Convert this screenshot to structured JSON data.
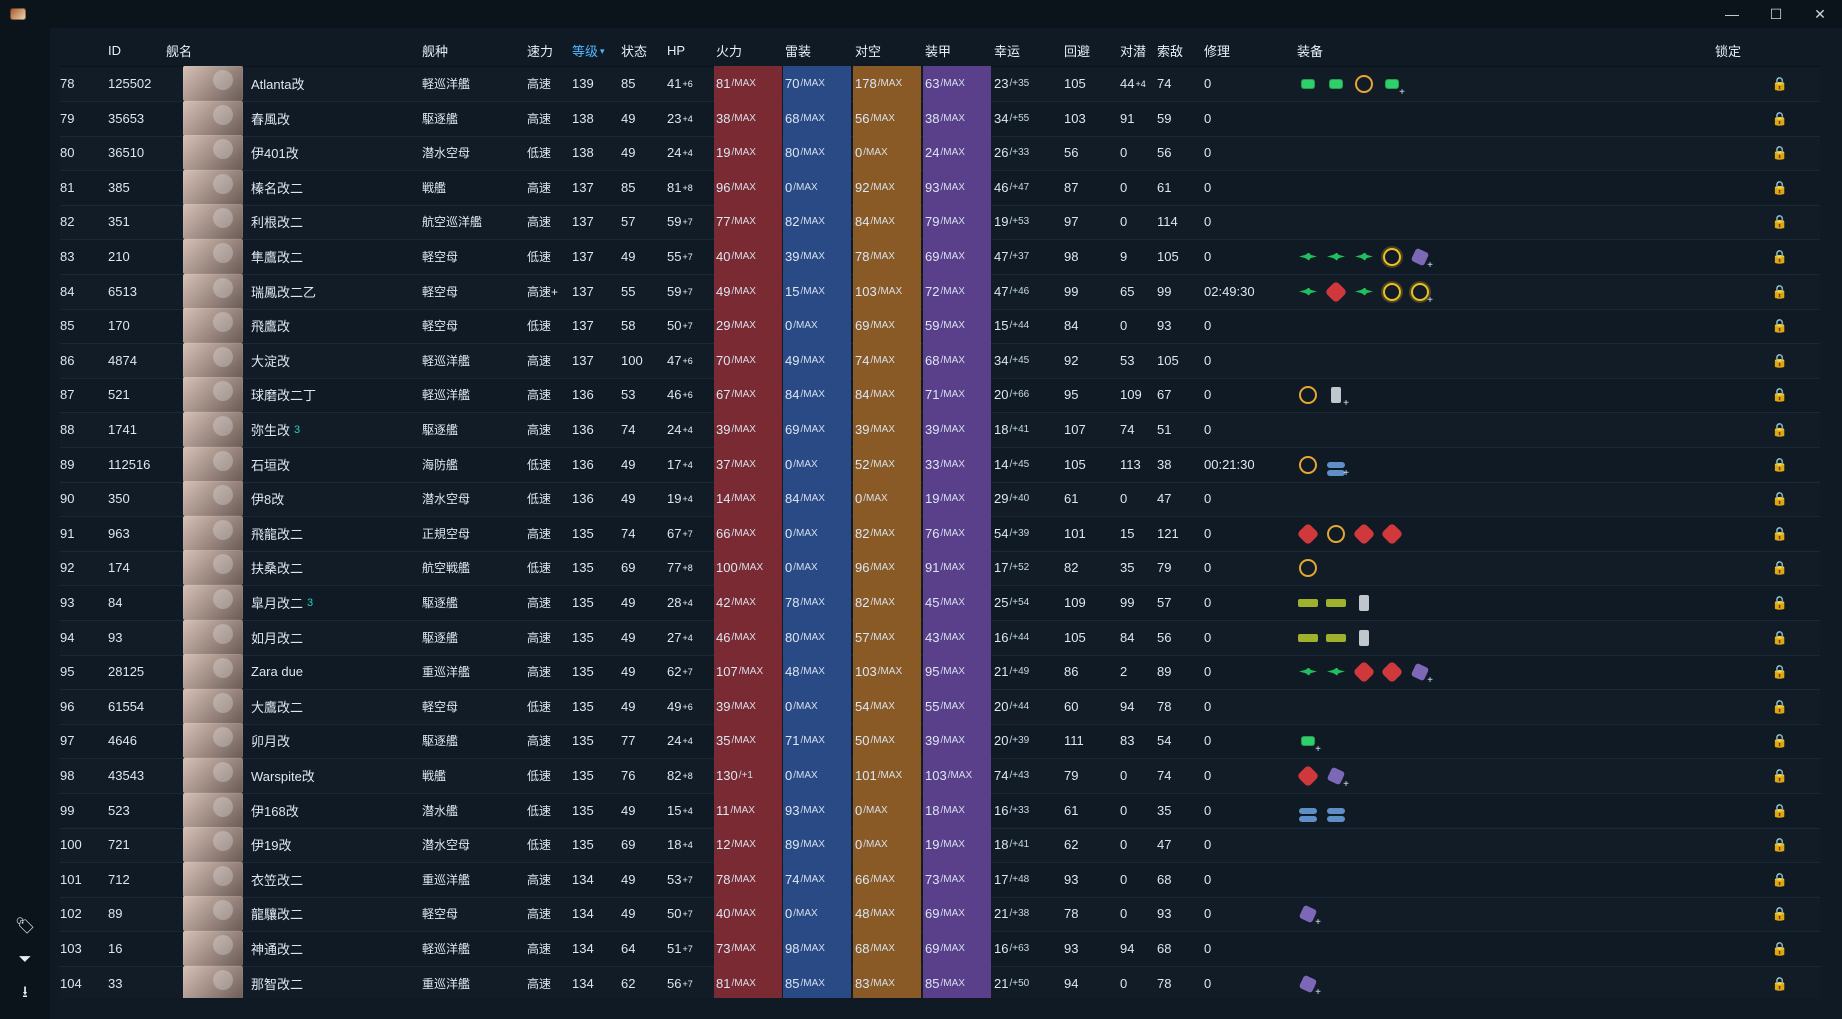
{
  "window": {
    "controls": {
      "minimize": "—",
      "maximize": "☐",
      "close": "✕"
    }
  },
  "sidebar": {
    "bottom_icons": [
      {
        "name": "tags-icon",
        "glyph": "🏷"
      },
      {
        "name": "filter-icon",
        "glyph": "⏷"
      },
      {
        "name": "download-icon",
        "glyph": "⭳"
      }
    ]
  },
  "table": {
    "headers": [
      {
        "key": "no",
        "label": ""
      },
      {
        "key": "id",
        "label": "ID"
      },
      {
        "key": "name",
        "label": "舰名"
      },
      {
        "key": "type",
        "label": "舰种"
      },
      {
        "key": "speed",
        "label": "速力"
      },
      {
        "key": "level",
        "label": "等级",
        "sorted": true,
        "caret": "▾"
      },
      {
        "key": "cond",
        "label": "状态"
      },
      {
        "key": "hp",
        "label": "HP"
      },
      {
        "key": "fire",
        "label": "火力"
      },
      {
        "key": "torp",
        "label": "雷装"
      },
      {
        "key": "aa",
        "label": "对空"
      },
      {
        "key": "armor",
        "label": "装甲"
      },
      {
        "key": "luck",
        "label": "幸运"
      },
      {
        "key": "evasion",
        "label": "回避"
      },
      {
        "key": "asw",
        "label": "对潜"
      },
      {
        "key": "los",
        "label": "索敌"
      },
      {
        "key": "repair",
        "label": "修理"
      },
      {
        "key": "equip",
        "label": "装备"
      },
      {
        "key": "lock",
        "label": "锁定"
      }
    ],
    "rows": [
      {
        "no": "78",
        "id": "125502",
        "name": "Atlanta改",
        "type": "軽巡洋艦",
        "speed": "高速",
        "level": "139",
        "cond": "85",
        "hp": "41",
        "hp_mod": "+6",
        "fire": "81",
        "torp": "70",
        "aa": "178",
        "armor": "63",
        "luck": "23",
        "luck_mod": "+35",
        "evasion": "105",
        "asw": "44",
        "asw_mod": "+4",
        "los": "74",
        "repair": "0",
        "equips": [
          "eq-dot",
          "eq-dot",
          "eq-radar",
          "eq-dot+"
        ]
      },
      {
        "no": "79",
        "id": "35653",
        "name": "春風改",
        "type": "駆逐艦",
        "speed": "高速",
        "level": "138",
        "cond": "49",
        "hp": "23",
        "hp_mod": "+4",
        "fire": "38",
        "torp": "68",
        "aa": "56",
        "armor": "38",
        "luck": "34",
        "luck_mod": "+55",
        "evasion": "103",
        "asw": "91",
        "asw_mod": "",
        "los": "59",
        "repair": "0",
        "equips": []
      },
      {
        "no": "80",
        "id": "36510",
        "name": "伊401改",
        "type": "潜水空母",
        "speed": "低速",
        "level": "138",
        "cond": "49",
        "hp": "24",
        "hp_mod": "+4",
        "fire": "19",
        "torp": "80",
        "aa": "0",
        "armor": "24",
        "luck": "26",
        "luck_mod": "+33",
        "evasion": "56",
        "asw": "0",
        "asw_mod": "",
        "los": "56",
        "repair": "0",
        "equips": []
      },
      {
        "no": "81",
        "id": "385",
        "name": "榛名改二",
        "type": "戦艦",
        "speed": "高速",
        "level": "137",
        "cond": "85",
        "hp": "81",
        "hp_mod": "+8",
        "fire": "96",
        "torp": "0",
        "aa": "92",
        "armor": "93",
        "luck": "46",
        "luck_mod": "+47",
        "evasion": "87",
        "asw": "0",
        "asw_mod": "",
        "los": "61",
        "repair": "0",
        "equips": []
      },
      {
        "no": "82",
        "id": "351",
        "name": "利根改二",
        "type": "航空巡洋艦",
        "speed": "高速",
        "level": "137",
        "cond": "57",
        "hp": "59",
        "hp_mod": "+7",
        "fire": "77",
        "torp": "82",
        "aa": "84",
        "armor": "79",
        "luck": "19",
        "luck_mod": "+53",
        "evasion": "97",
        "asw": "0",
        "asw_mod": "",
        "los": "114",
        "repair": "0",
        "equips": []
      },
      {
        "no": "83",
        "id": "210",
        "name": "隼鷹改二",
        "type": "軽空母",
        "speed": "低速",
        "level": "137",
        "cond": "49",
        "hp": "55",
        "hp_mod": "+7",
        "fire": "40",
        "torp": "39",
        "aa": "78",
        "armor": "69",
        "luck": "47",
        "luck_mod": "+37",
        "evasion": "98",
        "asw": "9",
        "asw_mod": "",
        "los": "105",
        "repair": "0",
        "equips": [
          "eq-plane",
          "eq-plane",
          "eq-plane",
          "eq-sun",
          "eq-purple+"
        ]
      },
      {
        "no": "84",
        "id": "6513",
        "name": "瑞鳳改二乙",
        "type": "軽空母",
        "speed": "高速+",
        "level": "137",
        "cond": "55",
        "hp": "59",
        "hp_mod": "+7",
        "fire": "49",
        "torp": "15",
        "aa": "103",
        "armor": "72",
        "luck": "47",
        "luck_mod": "+46",
        "evasion": "99",
        "asw": "65",
        "asw_mod": "",
        "los": "99",
        "repair": "02:49:30",
        "equips": [
          "eq-plane",
          "eq-red",
          "eq-plane",
          "eq-sun",
          "eq-sun+"
        ]
      },
      {
        "no": "85",
        "id": "170",
        "name": "飛鷹改",
        "type": "軽空母",
        "speed": "低速",
        "level": "137",
        "cond": "58",
        "hp": "50",
        "hp_mod": "+7",
        "fire": "29",
        "torp": "0",
        "aa": "69",
        "armor": "59",
        "luck": "15",
        "luck_mod": "+44",
        "evasion": "84",
        "asw": "0",
        "asw_mod": "",
        "los": "93",
        "repair": "0",
        "equips": []
      },
      {
        "no": "86",
        "id": "4874",
        "name": "大淀改",
        "type": "軽巡洋艦",
        "speed": "高速",
        "level": "137",
        "cond": "100",
        "hp": "47",
        "hp_mod": "+6",
        "fire": "70",
        "torp": "49",
        "aa": "74",
        "armor": "68",
        "luck": "34",
        "luck_mod": "+45",
        "evasion": "92",
        "asw": "53",
        "asw_mod": "",
        "los": "105",
        "repair": "0",
        "equips": []
      },
      {
        "no": "87",
        "id": "521",
        "name": "球磨改二丁",
        "type": "軽巡洋艦",
        "speed": "高速",
        "level": "136",
        "cond": "53",
        "hp": "46",
        "hp_mod": "+6",
        "fire": "67",
        "torp": "84",
        "aa": "84",
        "armor": "71",
        "luck": "20",
        "luck_mod": "+66",
        "evasion": "95",
        "asw": "109",
        "asw_mod": "",
        "los": "67",
        "repair": "0",
        "equips": [
          "eq-radar",
          "eq-gray+"
        ]
      },
      {
        "no": "88",
        "id": "1741",
        "name": "弥生改",
        "name_badge": "3",
        "type": "駆逐艦",
        "speed": "高速",
        "level": "136",
        "cond": "74",
        "hp": "24",
        "hp_mod": "+4",
        "fire": "39",
        "torp": "69",
        "aa": "39",
        "armor": "39",
        "luck": "18",
        "luck_mod": "+41",
        "evasion": "107",
        "asw": "74",
        "asw_mod": "",
        "los": "51",
        "repair": "0",
        "equips": []
      },
      {
        "no": "89",
        "id": "112516",
        "name": "石垣改",
        "type": "海防艦",
        "speed": "低速",
        "level": "136",
        "cond": "49",
        "hp": "17",
        "hp_mod": "+4",
        "fire": "37",
        "torp": "0",
        "aa": "52",
        "armor": "33",
        "luck": "14",
        "luck_mod": "+45",
        "evasion": "105",
        "asw": "113",
        "asw_mod": "",
        "los": "38",
        "repair": "00:21:30",
        "equips": [
          "eq-radar",
          "eq-blue+"
        ]
      },
      {
        "no": "90",
        "id": "350",
        "name": "伊8改",
        "type": "潜水空母",
        "speed": "低速",
        "level": "136",
        "cond": "49",
        "hp": "19",
        "hp_mod": "+4",
        "fire": "14",
        "torp": "84",
        "aa": "0",
        "armor": "19",
        "luck": "29",
        "luck_mod": "+40",
        "evasion": "61",
        "asw": "0",
        "asw_mod": "",
        "los": "47",
        "repair": "0",
        "equips": []
      },
      {
        "no": "91",
        "id": "963",
        "name": "飛龍改二",
        "type": "正規空母",
        "speed": "高速",
        "level": "135",
        "cond": "74",
        "hp": "67",
        "hp_mod": "+7",
        "fire": "66",
        "torp": "0",
        "aa": "82",
        "armor": "76",
        "luck": "54",
        "luck_mod": "+39",
        "evasion": "101",
        "asw": "15",
        "asw_mod": "",
        "los": "121",
        "repair": "0",
        "equips": [
          "eq-red",
          "eq-radar",
          "eq-red",
          "eq-red"
        ]
      },
      {
        "no": "92",
        "id": "174",
        "name": "扶桑改二",
        "type": "航空戦艦",
        "speed": "低速",
        "level": "135",
        "cond": "69",
        "hp": "77",
        "hp_mod": "+8",
        "fire": "100",
        "torp": "0",
        "aa": "96",
        "armor": "91",
        "luck": "17",
        "luck_mod": "+52",
        "evasion": "82",
        "asw": "35",
        "asw_mod": "",
        "los": "79",
        "repair": "0",
        "equips": [
          "eq-radar"
        ]
      },
      {
        "no": "93",
        "id": "84",
        "name": "皐月改二",
        "name_badge": "3",
        "type": "駆逐艦",
        "speed": "高速",
        "level": "135",
        "cond": "49",
        "hp": "28",
        "hp_mod": "+4",
        "fire": "42",
        "torp": "78",
        "aa": "82",
        "armor": "45",
        "luck": "25",
        "luck_mod": "+54",
        "evasion": "109",
        "asw": "99",
        "asw_mod": "",
        "los": "57",
        "repair": "0",
        "equips": [
          "eq-ship",
          "eq-ship",
          "eq-gray"
        ]
      },
      {
        "no": "94",
        "id": "93",
        "name": "如月改二",
        "type": "駆逐艦",
        "speed": "高速",
        "level": "135",
        "cond": "49",
        "hp": "27",
        "hp_mod": "+4",
        "fire": "46",
        "torp": "80",
        "aa": "57",
        "armor": "43",
        "luck": "16",
        "luck_mod": "+44",
        "evasion": "105",
        "asw": "84",
        "asw_mod": "",
        "los": "56",
        "repair": "0",
        "equips": [
          "eq-ship",
          "eq-ship",
          "eq-gray"
        ]
      },
      {
        "no": "95",
        "id": "28125",
        "name": "Zara due",
        "type": "重巡洋艦",
        "speed": "高速",
        "level": "135",
        "cond": "49",
        "hp": "62",
        "hp_mod": "+7",
        "fire": "107",
        "torp": "48",
        "aa": "103",
        "armor": "95",
        "luck": "21",
        "luck_mod": "+49",
        "evasion": "86",
        "asw": "2",
        "asw_mod": "",
        "los": "89",
        "repair": "0",
        "equips": [
          "eq-plane",
          "eq-plane",
          "eq-red",
          "eq-red",
          "eq-purple+"
        ]
      },
      {
        "no": "96",
        "id": "61554",
        "name": "大鷹改二",
        "type": "軽空母",
        "speed": "低速",
        "level": "135",
        "cond": "49",
        "hp": "49",
        "hp_mod": "+6",
        "fire": "39",
        "torp": "0",
        "aa": "54",
        "armor": "55",
        "luck": "20",
        "luck_mod": "+44",
        "evasion": "60",
        "asw": "94",
        "asw_mod": "",
        "los": "78",
        "repair": "0",
        "equips": []
      },
      {
        "no": "97",
        "id": "4646",
        "name": "卯月改",
        "type": "駆逐艦",
        "speed": "高速",
        "level": "135",
        "cond": "77",
        "hp": "24",
        "hp_mod": "+4",
        "fire": "35",
        "torp": "71",
        "aa": "50",
        "armor": "39",
        "luck": "20",
        "luck_mod": "+39",
        "evasion": "111",
        "asw": "83",
        "asw_mod": "",
        "los": "54",
        "repair": "0",
        "equips": [
          "eq-dot+"
        ]
      },
      {
        "no": "98",
        "id": "43543",
        "name": "Warspite改",
        "type": "戦艦",
        "speed": "低速",
        "level": "135",
        "cond": "76",
        "hp": "82",
        "hp_mod": "+8",
        "fire": "130",
        "fire_plain": true,
        "fire_mod": "+1",
        "torp": "0",
        "aa": "101",
        "armor": "103",
        "luck": "74",
        "luck_mod": "+43",
        "evasion": "79",
        "asw": "0",
        "asw_mod": "",
        "los": "74",
        "repair": "0",
        "equips": [
          "eq-red",
          "eq-purple+"
        ]
      },
      {
        "no": "99",
        "id": "523",
        "name": "伊168改",
        "type": "潜水艦",
        "speed": "低速",
        "level": "135",
        "cond": "49",
        "hp": "15",
        "hp_mod": "+4",
        "fire": "11",
        "torp": "93",
        "aa": "0",
        "armor": "18",
        "luck": "16",
        "luck_mod": "+33",
        "evasion": "61",
        "asw": "0",
        "asw_mod": "",
        "los": "35",
        "repair": "0",
        "equips": [
          "eq-blue",
          "eq-blue"
        ]
      },
      {
        "no": "100",
        "id": "721",
        "name": "伊19改",
        "type": "潜水空母",
        "speed": "低速",
        "level": "135",
        "cond": "69",
        "hp": "18",
        "hp_mod": "+4",
        "fire": "12",
        "torp": "89",
        "aa": "0",
        "armor": "19",
        "luck": "18",
        "luck_mod": "+41",
        "evasion": "62",
        "asw": "0",
        "asw_mod": "",
        "los": "47",
        "repair": "0",
        "equips": []
      },
      {
        "no": "101",
        "id": "712",
        "name": "衣笠改二",
        "type": "重巡洋艦",
        "speed": "高速",
        "level": "134",
        "cond": "49",
        "hp": "53",
        "hp_mod": "+7",
        "fire": "78",
        "torp": "74",
        "aa": "66",
        "armor": "73",
        "luck": "17",
        "luck_mod": "+48",
        "evasion": "93",
        "asw": "0",
        "asw_mod": "",
        "los": "68",
        "repair": "0",
        "equips": []
      },
      {
        "no": "102",
        "id": "89",
        "name": "龍驤改二",
        "type": "軽空母",
        "speed": "高速",
        "level": "134",
        "cond": "49",
        "hp": "50",
        "hp_mod": "+7",
        "fire": "40",
        "torp": "0",
        "aa": "48",
        "armor": "69",
        "luck": "21",
        "luck_mod": "+38",
        "evasion": "78",
        "asw": "0",
        "asw_mod": "",
        "los": "93",
        "repair": "0",
        "equips": [
          "eq-purple+"
        ]
      },
      {
        "no": "103",
        "id": "16",
        "name": "神通改二",
        "type": "軽巡洋艦",
        "speed": "高速",
        "level": "134",
        "cond": "64",
        "hp": "51",
        "hp_mod": "+7",
        "fire": "73",
        "torp": "98",
        "aa": "68",
        "armor": "69",
        "luck": "16",
        "luck_mod": "+63",
        "evasion": "93",
        "asw": "94",
        "asw_mod": "",
        "los": "68",
        "repair": "0",
        "equips": []
      },
      {
        "no": "104",
        "id": "33",
        "name": "那智改二",
        "type": "重巡洋艦",
        "speed": "高速",
        "level": "134",
        "cond": "62",
        "hp": "56",
        "hp_mod": "+7",
        "fire": "81",
        "torp": "85",
        "aa": "83",
        "armor": "85",
        "luck": "21",
        "luck_mod": "+50",
        "evasion": "94",
        "asw": "0",
        "asw_mod": "",
        "los": "78",
        "repair": "0",
        "equips": [
          "eq-purple+"
        ]
      }
    ],
    "labels": {
      "max": "MAX"
    },
    "lock_glyph": "🔒"
  },
  "colors": {
    "accent": "#4fb6ff",
    "fire": "#7a2a33",
    "torp": "#2a4a86",
    "aa": "#8a5a26",
    "armor": "#5a3f8a"
  }
}
